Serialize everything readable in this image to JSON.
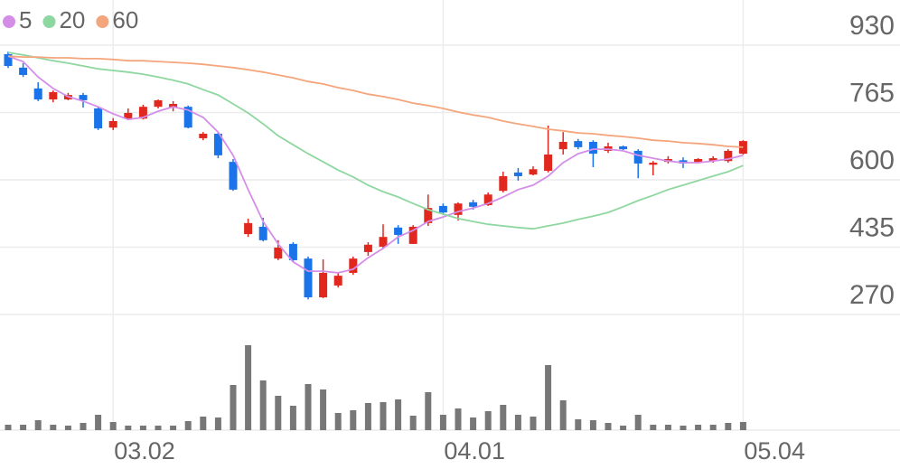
{
  "chart_data": {
    "type": "candlestick",
    "categories": [
      null,
      null,
      null,
      null,
      null,
      null,
      null,
      "03.02",
      null,
      null,
      null,
      null,
      null,
      null,
      null,
      null,
      null,
      null,
      null,
      null,
      null,
      null,
      null,
      null,
      null,
      null,
      null,
      null,
      null,
      "04.01",
      null,
      null,
      null,
      null,
      null,
      null,
      null,
      null,
      null,
      null,
      null,
      null,
      null,
      null,
      null,
      null,
      null,
      null,
      null,
      "05.04"
    ],
    "open": [
      908,
      875,
      824,
      797,
      797,
      808,
      775,
      728,
      750,
      750,
      779,
      777,
      779,
      702,
      713,
      644,
      467,
      485,
      407,
      443,
      407,
      312,
      341,
      372,
      423,
      436,
      483,
      443,
      494,
      536,
      514,
      545,
      538,
      573,
      618,
      613,
      622,
      675,
      695,
      693,
      671,
      682,
      671,
      637,
      644,
      648,
      642,
      646,
      646,
      664
    ],
    "high": [
      914,
      886,
      839,
      819,
      813,
      813,
      779,
      751,
      775,
      784,
      797,
      793,
      782,
      717,
      717,
      651,
      505,
      507,
      452,
      447,
      412,
      405,
      372,
      412,
      447,
      491,
      489,
      489,
      564,
      542,
      545,
      551,
      569,
      620,
      629,
      633,
      733,
      717,
      700,
      697,
      691,
      684,
      675,
      646,
      658,
      655,
      653,
      658,
      675,
      697
    ],
    "low": [
      874,
      852,
      793,
      790,
      795,
      777,
      722,
      722,
      746,
      748,
      775,
      768,
      726,
      697,
      653,
      573,
      460,
      449,
      403,
      401,
      307,
      310,
      336,
      367,
      414,
      432,
      443,
      443,
      487,
      514,
      500,
      527,
      536,
      569,
      598,
      611,
      618,
      662,
      675,
      631,
      666,
      673,
      604,
      611,
      640,
      629,
      640,
      642,
      642,
      662
    ],
    "close": [
      879,
      857,
      797,
      815,
      808,
      795,
      726,
      744,
      764,
      779,
      795,
      786,
      728,
      713,
      660,
      576,
      494,
      452,
      434,
      403,
      312,
      372,
      365,
      407,
      441,
      460,
      465,
      485,
      531,
      520,
      542,
      534,
      564,
      609,
      609,
      626,
      662,
      693,
      680,
      664,
      682,
      675,
      640,
      642,
      651,
      640,
      651,
      653,
      671,
      695
    ],
    "volume": [
      6,
      6,
      11,
      6,
      5,
      8,
      17,
      9,
      5,
      5,
      5,
      5,
      10,
      15,
      14,
      50,
      94,
      55,
      38,
      27,
      51,
      45,
      19,
      22,
      30,
      31,
      34,
      16,
      42,
      17,
      24,
      14,
      21,
      28,
      17,
      15,
      72,
      33,
      12,
      11,
      8,
      5,
      17,
      6,
      6,
      5,
      6,
      6,
      8,
      9
    ],
    "up_color": "#e0281e",
    "down_color": "#1a73e8",
    "volume_color": "#777777",
    "series": [
      {
        "name": "5",
        "color": "#d48ee8",
        "values": [
          903,
          890,
          852,
          824,
          804,
          793,
          779,
          762,
          748,
          753,
          768,
          779,
          771,
          753,
          717,
          660,
          576,
          498,
          443,
          399,
          376,
          376,
          372,
          381,
          409,
          432,
          460,
          476,
          498,
          509,
          522,
          531,
          542,
          558,
          576,
          587,
          609,
          642,
          664,
          675,
          675,
          671,
          660,
          653,
          646,
          642,
          642,
          646,
          651,
          660
        ]
      },
      {
        "name": "20",
        "color": "#8fd7a0",
        "values": [
          912,
          906,
          899,
          892,
          886,
          879,
          872,
          868,
          864,
          859,
          852,
          844,
          835,
          821,
          808,
          786,
          764,
          737,
          708,
          686,
          664,
          644,
          624,
          607,
          587,
          571,
          558,
          542,
          527,
          516,
          505,
          498,
          491,
          487,
          483,
          480,
          487,
          494,
          503,
          511,
          520,
          534,
          549,
          562,
          576,
          587,
          598,
          609,
          620,
          635
        ]
      },
      {
        "name": "60",
        "color": "#f4a57c",
        "values": [
          903,
          901,
          901,
          899,
          899,
          897,
          897,
          895,
          892,
          892,
          890,
          888,
          886,
          883,
          879,
          875,
          870,
          864,
          857,
          850,
          841,
          835,
          826,
          819,
          810,
          804,
          797,
          788,
          782,
          775,
          766,
          759,
          753,
          744,
          737,
          731,
          724,
          720,
          715,
          713,
          709,
          706,
          702,
          697,
          695,
          691,
          689,
          686,
          682,
          680
        ]
      }
    ],
    "ylim": [
      270,
      930
    ],
    "yticks": [
      930,
      765,
      600,
      435,
      270
    ],
    "grid": true
  }
}
